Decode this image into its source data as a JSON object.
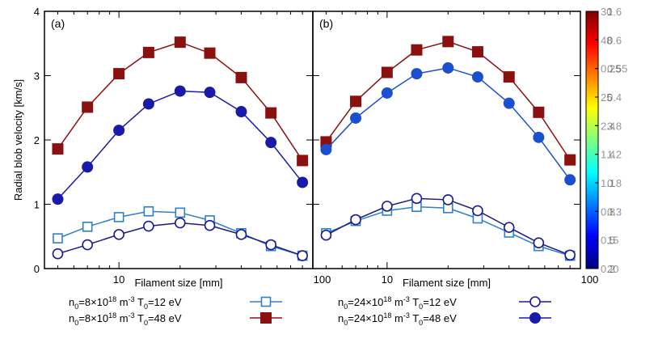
{
  "chart_data": {
    "type": "line",
    "ylabel": "Radial blob velocity [km/s]",
    "xlabel": "Filament size [mm]",
    "x_scale": "log",
    "xlim": [
      4.3,
      90
    ],
    "ylim": [
      0,
      4
    ],
    "y_ticks": [
      "0",
      "1",
      "2",
      "3",
      "4"
    ],
    "x_tick_labels": [
      "10",
      "100"
    ],
    "panels": [
      {
        "label": "(a)",
        "series": [
          {
            "name": "n0=8x10^18 m-3 T0=12 eV",
            "marker": "open-square",
            "color": "#2f80c8",
            "x": [
              5,
              7,
              10,
              14,
              20,
              28,
              40,
              56,
              80
            ],
            "y": [
              0.47,
              0.65,
              0.8,
              0.89,
              0.87,
              0.75,
              0.55,
              0.35,
              0.2
            ]
          },
          {
            "name": "n0=8x10^18 m-3 T0=48 eV",
            "marker": "filled-square",
            "color": "#8b1010",
            "x": [
              5,
              7,
              10,
              14,
              20,
              28,
              40,
              56,
              80
            ],
            "y": [
              1.86,
              2.51,
              3.03,
              3.36,
              3.52,
              3.35,
              2.97,
              2.42,
              1.68
            ]
          },
          {
            "name": "n0=24x10^18 m-3 T0=12 eV",
            "marker": "open-circle",
            "color": "#1a1a8a",
            "x": [
              5,
              7,
              10,
              14,
              20,
              28,
              40,
              56,
              80
            ],
            "y": [
              0.23,
              0.37,
              0.53,
              0.66,
              0.71,
              0.67,
              0.53,
              0.37,
              0.2
            ]
          },
          {
            "name": "n0=24x10^18 m-3 T0=48 eV",
            "marker": "filled-circle",
            "color": "#1a1aa8",
            "x": [
              5,
              7,
              10,
              14,
              20,
              28,
              40,
              56,
              80
            ],
            "y": [
              1.08,
              1.58,
              2.15,
              2.56,
              2.76,
              2.74,
              2.44,
              1.96,
              1.34
            ]
          }
        ]
      },
      {
        "label": "(b)",
        "series": [
          {
            "name": "n0=8x10^18 m-3 T0=12 eV",
            "marker": "open-square",
            "color": "#2f80c8",
            "x": [
              5,
              7,
              10,
              14,
              20,
              28,
              40,
              56,
              80
            ],
            "y": [
              0.55,
              0.74,
              0.9,
              0.96,
              0.94,
              0.78,
              0.56,
              0.35,
              0.2
            ]
          },
          {
            "name": "n0=8x10^18 m-3 T0=48 eV",
            "marker": "filled-square",
            "color": "#8b1010",
            "x": [
              5,
              7,
              10,
              14,
              20,
              28,
              40,
              56,
              80
            ],
            "y": [
              1.97,
              2.6,
              3.05,
              3.4,
              3.53,
              3.37,
              2.98,
              2.43,
              1.69
            ]
          },
          {
            "name": "n0=24x10^18 m-3 T0=12 eV",
            "marker": "open-circle",
            "color": "#1a1a8a",
            "x": [
              5,
              7,
              10,
              14,
              20,
              28,
              40,
              56,
              80
            ],
            "y": [
              0.52,
              0.76,
              0.97,
              1.09,
              1.07,
              0.9,
              0.64,
              0.4,
              0.21
            ]
          },
          {
            "name": "n0=24x10^18 m-3 T0=48 eV",
            "marker": "filled-circle",
            "color": "#1a50d0",
            "x": [
              5,
              7,
              10,
              14,
              20,
              28,
              40,
              56,
              80
            ],
            "y": [
              1.85,
              2.34,
              2.73,
              3.03,
              3.12,
              2.98,
              2.57,
              2.04,
              1.38
            ]
          }
        ]
      }
    ],
    "legend": [
      {
        "series_index": 0,
        "prefix": "n",
        "sub": "0",
        "mid": "=8×10",
        "sup": "18",
        "unit": " m",
        "unit_sup": "-3",
        "suffix": " T",
        "suffix_sub": "0",
        "tail": "=12 eV"
      },
      {
        "series_index": 1,
        "prefix": "n",
        "sub": "0",
        "mid": "=8×10",
        "sup": "18",
        "unit": " m",
        "unit_sup": "-3",
        "suffix": " T",
        "suffix_sub": "0",
        "tail": "=48 eV"
      },
      {
        "series_index": 2,
        "prefix": "n",
        "sub": "0",
        "mid": "=24×10",
        "sup": "18",
        "unit": " m",
        "unit_sup": "-3",
        "suffix": " T",
        "suffix_sub": "0",
        "tail": "=12 eV"
      },
      {
        "series_index": 3,
        "prefix": "n",
        "sub": "0",
        "mid": "=24×10",
        "sup": "18",
        "unit": " m",
        "unit_sup": "-3",
        "suffix": " T",
        "suffix_sub": "0",
        "tail": "=48 eV"
      }
    ],
    "colorbar": {
      "colormap": [
        "#00007f",
        "#0000ff",
        "#007fff",
        "#00ffff",
        "#7fff7f",
        "#ffff00",
        "#ff7f00",
        "#ff0000",
        "#7f0000"
      ],
      "overlapping_tick_labels": [
        "0.2",
        "0.5",
        "0.8",
        "1.1",
        "1.4",
        "2.4",
        "25",
        "0.25",
        "48",
        "30",
        "20",
        "15",
        "0.3",
        "0.8",
        "1.2",
        "3.8",
        "0.4",
        "0.55",
        "0.6",
        "1.6"
      ]
    }
  }
}
